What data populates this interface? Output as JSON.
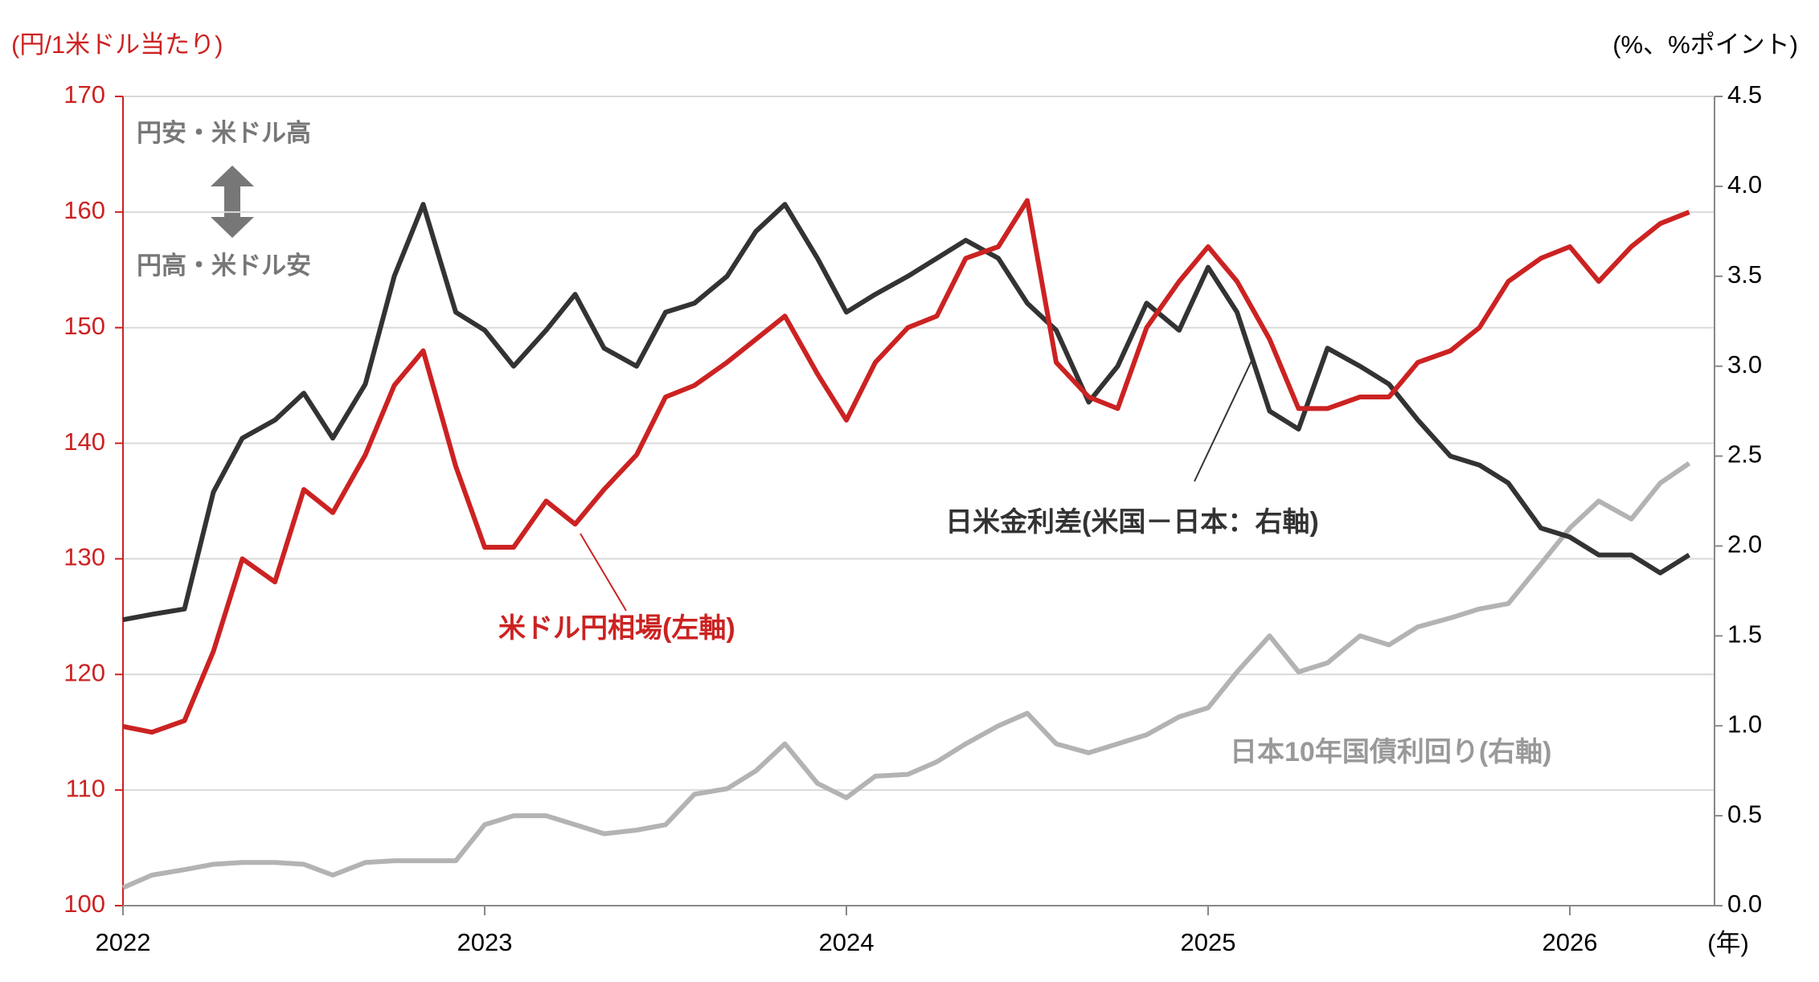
{
  "chart_data": {
    "type": "line",
    "y_label": "(円/1米ドル当たり)",
    "y2_label": "(%、%ポイント)",
    "x_label": "(年)",
    "annotations": [
      "円安・米ドル高",
      "円高・米ドル安"
    ],
    "x": [
      2022,
      2022.08,
      2022.17,
      2022.25,
      2022.33,
      2022.42,
      2022.5,
      2022.58,
      2022.67,
      2022.75,
      2022.83,
      2022.92,
      2023,
      2023.08,
      2023.17,
      2023.25,
      2023.33,
      2023.42,
      2023.5,
      2023.58,
      2023.67,
      2023.75,
      2023.83,
      2023.92,
      2024,
      2024.08,
      2024.17,
      2024.25,
      2024.33,
      2024.42,
      2024.5,
      2024.58,
      2024.67,
      2024.75,
      2024.83,
      2024.92,
      2025,
      2025.08,
      2025.17,
      2025.25,
      2025.33,
      2025.42,
      2025.5,
      2025.58,
      2025.67,
      2025.75,
      2025.83,
      2025.92,
      2026,
      2026.08,
      2026.17,
      2026.25,
      2026.33
    ],
    "xlim": [
      2022,
      2026.4
    ],
    "xticks": [
      2022,
      2023,
      2024,
      2025,
      2026
    ],
    "ylim": [
      100,
      170
    ],
    "yticks": [
      100,
      110,
      120,
      130,
      140,
      150,
      160,
      170
    ],
    "y2lim": [
      0,
      4.5
    ],
    "y2ticks": [
      {
        "value": 0,
        "label": "0.0"
      },
      0.5,
      {
        "value": 1,
        "label": "1.0"
      },
      1.5,
      {
        "value": 2,
        "label": "2.0"
      },
      2.5,
      {
        "value": 3,
        "label": "3.0"
      },
      3.5,
      {
        "value": 4,
        "label": "4.0"
      },
      4.5
    ],
    "grid": true,
    "series": [
      {
        "name": "米ドル円相場(左軸)",
        "color": "#cc2222",
        "values": [
          115.5,
          115,
          116,
          122,
          130,
          128,
          136,
          134,
          139,
          145,
          148,
          138,
          131,
          131,
          135,
          133,
          136,
          139,
          144,
          145,
          147,
          149,
          151,
          146,
          142,
          147,
          150,
          151,
          156,
          157,
          161,
          147,
          144,
          143,
          150,
          154,
          157,
          154,
          149,
          143,
          143,
          144,
          144,
          147,
          148,
          150,
          154,
          156,
          157,
          154,
          157,
          159,
          160
        ]
      },
      {
        "name": "日米金利差(米国－日本：右軸)",
        "color": "#333333",
        "axis": "y2",
        "values": [
          1.59,
          1.62,
          1.65,
          2.3,
          2.6,
          2.7,
          2.85,
          2.6,
          2.9,
          3.5,
          3.9,
          3.3,
          3.2,
          3.0,
          3.2,
          3.4,
          3.1,
          3.0,
          3.3,
          3.35,
          3.5,
          3.75,
          3.9,
          3.6,
          3.3,
          3.4,
          3.5,
          3.6,
          3.7,
          3.6,
          3.35,
          3.2,
          2.8,
          3.0,
          3.35,
          3.2,
          3.55,
          3.3,
          2.75,
          2.65,
          3.1,
          3.0,
          2.9,
          2.7,
          2.5,
          2.45,
          2.35,
          2.1,
          2.05,
          1.95,
          1.95,
          1.85,
          1.95
        ]
      },
      {
        "name": "日本10年国債利回り(右軸)",
        "color": "#b3b3b3",
        "axis": "y2",
        "values": [
          0.1,
          0.17,
          0.2,
          0.23,
          0.24,
          0.24,
          0.23,
          0.17,
          0.24,
          0.25,
          0.25,
          0.25,
          0.45,
          0.5,
          0.5,
          0.45,
          0.4,
          0.42,
          0.45,
          0.62,
          0.65,
          0.75,
          0.9,
          0.68,
          0.6,
          0.72,
          0.73,
          0.8,
          0.9,
          1.0,
          1.07,
          0.9,
          0.85,
          0.9,
          0.95,
          1.05,
          1.1,
          1.3,
          1.5,
          1.3,
          1.35,
          1.5,
          1.45,
          1.55,
          1.6,
          1.65,
          1.68,
          1.9,
          2.1,
          2.25,
          2.15,
          2.35,
          2.46
        ]
      }
    ]
  }
}
